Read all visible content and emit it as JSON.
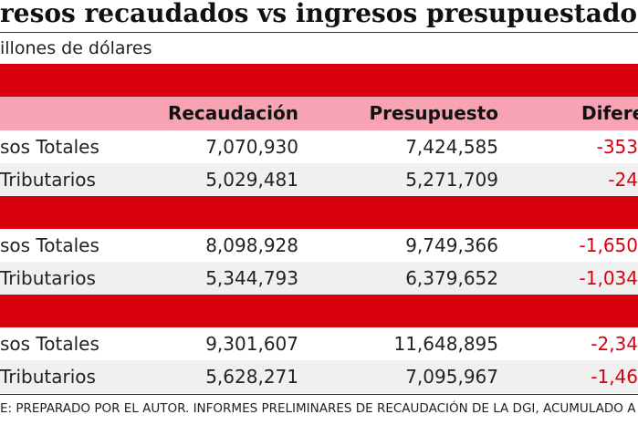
{
  "title": "resos recaudados vs ingresos presupuestados",
  "subtitle": "illones de dólares",
  "table": {
    "header": [
      "Recaudación",
      "Presupuesto",
      "Difere"
    ],
    "groups": [
      {
        "rows": [
          [
            "sos Totales",
            "7,070,930",
            "7,424,585",
            "-353"
          ],
          [
            "Tributarios",
            "5,029,481",
            "5,271,709",
            "-24"
          ]
        ]
      },
      {
        "rows": [
          [
            "sos Totales",
            "8,098,928",
            "9,749,366",
            "-1,650"
          ],
          [
            "Tributarios",
            "5,344,793",
            "6,379,652",
            "-1,034"
          ]
        ]
      },
      {
        "rows": [
          [
            "sos Totales",
            "9,301,607",
            "11,648,895",
            "-2,34"
          ],
          [
            "Tributarios",
            "5,628,271",
            "7,095,967",
            "-1,46"
          ]
        ]
      }
    ]
  },
  "footer": "E: PREPARADO POR EL AUTOR. INFORMES PRELIMINARES DE RECAUDACIÓN DE LA DGI, ACUMULADO A DI"
}
